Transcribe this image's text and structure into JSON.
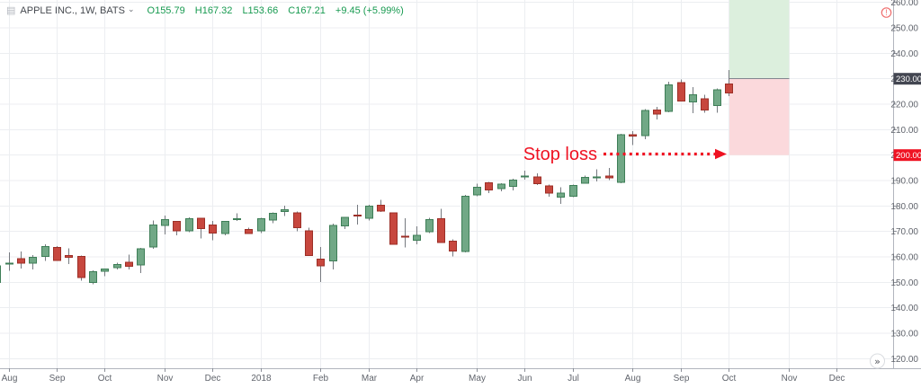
{
  "header": {
    "symbol": "APPLE INC., 1W, BATS",
    "open": "O155.79",
    "high": "H167.32",
    "low": "L153.66",
    "close": "C167.21",
    "change": "+9.45 (+5.99%)"
  },
  "icons": {
    "symbol_chart_icon": "▤",
    "symbol_dropdown_icon": "⌄",
    "alert_icon": "!",
    "scroll_to_recent_icon": "»"
  },
  "colors": {
    "background": "#ffffff",
    "up_fill": "#71a886",
    "up_border": "#3e7e57",
    "down_fill": "#c7473e",
    "down_border": "#9c2f27",
    "wick": "#75797f",
    "grid": "#eceef1",
    "axis_line": "#b2b5be",
    "tick": "#8b8f98",
    "axis_text": "#60646c",
    "profit_zone": "#dcefdd",
    "loss_zone": "#fbd9dc",
    "zone_border": "#82868f",
    "entry_label_bg": "#434651",
    "stop_label_bg": "#ef1222",
    "label_text": "#ffffff",
    "annotation_red": "#ef1222",
    "legend_green": "#179a50",
    "legend_text": "#45494f",
    "icon_gray": "#b5b8bf",
    "alert_icon_color": "#ef6e6e",
    "scroll_btn_border": "#d9dce0",
    "scroll_btn_text": "#55585e"
  },
  "chart_data": {
    "type": "candlestick",
    "title": "APPLE INC., 1W, BATS",
    "timeframe": "1W",
    "ylim": [
      118,
      262
    ],
    "grid": true,
    "price_axis_ticks": [
      260,
      250,
      240,
      230,
      220,
      210,
      200,
      190,
      180,
      170,
      160,
      150,
      140,
      130,
      120
    ],
    "x_axis_labels": [
      {
        "label": "Aug",
        "week_index": 1
      },
      {
        "label": "Sep",
        "week_index": 5
      },
      {
        "label": "Oct",
        "week_index": 9
      },
      {
        "label": "Nov",
        "week_index": 14
      },
      {
        "label": "Dec",
        "week_index": 18
      },
      {
        "label": "2018",
        "week_index": 22
      },
      {
        "label": "Feb",
        "week_index": 27
      },
      {
        "label": "Mar",
        "week_index": 31
      },
      {
        "label": "Apr",
        "week_index": 35
      },
      {
        "label": "May",
        "week_index": 40
      },
      {
        "label": "Jun",
        "week_index": 44
      },
      {
        "label": "Jul",
        "week_index": 48
      },
      {
        "label": "Aug",
        "week_index": 53
      },
      {
        "label": "Sep",
        "week_index": 57
      },
      {
        "label": "Oct",
        "week_index": 61
      },
      {
        "label": "Nov",
        "week_index": 66
      },
      {
        "label": "Dec",
        "week_index": 70
      }
    ],
    "candles": {
      "columns": [
        "week_start",
        "open",
        "high",
        "low",
        "close"
      ],
      "rows": [
        [
          "2017-07-31",
          150.0,
          159.8,
          148.1,
          156.4
        ],
        [
          "2017-08-07",
          157.1,
          161.8,
          154.6,
          157.5
        ],
        [
          "2017-08-14",
          159.3,
          162.1,
          155.5,
          157.5
        ],
        [
          "2017-08-21",
          157.5,
          160.7,
          155.1,
          159.9
        ],
        [
          "2017-08-28",
          160.1,
          164.9,
          158.5,
          164.1
        ],
        [
          "2017-09-05",
          163.8,
          164.3,
          158.5,
          158.6
        ],
        [
          "2017-09-11",
          160.5,
          163.4,
          157.1,
          159.9
        ],
        [
          "2017-09-18",
          160.1,
          160.5,
          150.6,
          151.9
        ],
        [
          "2017-09-25",
          150.0,
          154.7,
          149.2,
          154.1
        ],
        [
          "2017-10-02",
          154.3,
          155.5,
          152.5,
          155.3
        ],
        [
          "2017-10-09",
          155.8,
          157.8,
          155.0,
          157.0
        ],
        [
          "2017-10-16",
          157.9,
          160.9,
          155.0,
          156.3
        ],
        [
          "2017-10-23",
          156.9,
          163.6,
          153.6,
          163.1
        ],
        [
          "2017-10-30",
          163.9,
          174.3,
          163.1,
          172.5
        ],
        [
          "2017-11-06",
          172.4,
          176.2,
          168.8,
          174.7
        ],
        [
          "2017-11-13",
          173.9,
          174.0,
          168.4,
          170.2
        ],
        [
          "2017-11-20",
          170.3,
          175.5,
          169.7,
          175.0
        ],
        [
          "2017-11-27",
          175.1,
          175.1,
          167.2,
          171.1
        ],
        [
          "2017-12-04",
          172.5,
          174.2,
          166.5,
          169.4
        ],
        [
          "2017-12-11",
          169.2,
          174.0,
          168.5,
          173.9
        ],
        [
          "2017-12-18",
          174.9,
          177.2,
          174.2,
          175.0
        ],
        [
          "2017-12-26",
          170.8,
          171.5,
          169.7,
          169.2
        ],
        [
          "2018-01-02",
          170.2,
          175.4,
          169.3,
          175.0
        ],
        [
          "2018-01-08",
          174.4,
          177.4,
          173.2,
          177.1
        ],
        [
          "2018-01-16",
          177.9,
          180.1,
          176.1,
          178.5
        ],
        [
          "2018-01-22",
          177.3,
          177.8,
          170.1,
          171.5
        ],
        [
          "2018-01-29",
          170.2,
          171.4,
          160.3,
          160.5
        ],
        [
          "2018-02-05",
          159.1,
          163.9,
          150.2,
          156.4
        ],
        [
          "2018-02-12",
          158.5,
          173.1,
          155.0,
          172.4
        ],
        [
          "2018-02-20",
          172.1,
          175.7,
          171.0,
          175.5
        ],
        [
          "2018-02-26",
          176.4,
          180.5,
          172.7,
          176.2
        ],
        [
          "2018-03-05",
          175.2,
          180.4,
          174.3,
          180.0
        ],
        [
          "2018-03-12",
          180.3,
          182.4,
          177.6,
          178.0
        ],
        [
          "2018-03-19",
          177.3,
          177.5,
          164.9,
          164.9
        ],
        [
          "2018-03-26",
          168.1,
          175.2,
          163.8,
          167.8
        ],
        [
          "2018-04-02",
          166.6,
          172.0,
          164.9,
          168.4
        ],
        [
          "2018-04-09",
          169.9,
          175.4,
          169.4,
          174.7
        ],
        [
          "2018-04-16",
          175.0,
          178.9,
          165.4,
          165.7
        ],
        [
          "2018-04-23",
          166.2,
          166.9,
          160.2,
          162.3
        ],
        [
          "2018-04-30",
          162.1,
          184.3,
          161.8,
          183.8
        ],
        [
          "2018-05-07",
          184.4,
          188.7,
          183.9,
          187.4
        ],
        [
          "2018-05-14",
          189.1,
          189.5,
          185.1,
          186.3
        ],
        [
          "2018-05-21",
          186.9,
          189.0,
          185.8,
          188.6
        ],
        [
          "2018-05-29",
          187.7,
          190.8,
          186.2,
          190.2
        ],
        [
          "2018-06-04",
          191.6,
          193.9,
          190.4,
          191.7
        ],
        [
          "2018-06-11",
          191.4,
          192.9,
          188.2,
          188.8
        ],
        [
          "2018-06-18",
          187.9,
          188.4,
          183.6,
          185.0
        ],
        [
          "2018-06-25",
          183.4,
          187.3,
          180.8,
          185.1
        ],
        [
          "2018-07-02",
          183.8,
          188.4,
          183.4,
          188.0
        ],
        [
          "2018-07-09",
          189.0,
          192.0,
          188.7,
          191.3
        ],
        [
          "2018-07-16",
          191.0,
          194.4,
          189.6,
          191.4
        ],
        [
          "2018-07-23",
          191.8,
          195.0,
          190.1,
          191.0
        ],
        [
          "2018-07-30",
          189.3,
          208.4,
          189.0,
          208.0
        ],
        [
          "2018-08-06",
          208.0,
          209.5,
          204.0,
          207.5
        ],
        [
          "2018-08-13",
          207.7,
          218.0,
          206.3,
          217.6
        ],
        [
          "2018-08-20",
          217.8,
          218.9,
          214.0,
          216.2
        ],
        [
          "2018-08-27",
          217.1,
          228.9,
          216.8,
          227.6
        ],
        [
          "2018-09-04",
          228.4,
          229.7,
          221.1,
          221.3
        ],
        [
          "2018-09-10",
          220.9,
          226.8,
          216.5,
          223.8
        ],
        [
          "2018-09-17",
          222.1,
          223.8,
          216.6,
          217.7
        ],
        [
          "2018-09-24",
          219.5,
          226.2,
          216.6,
          225.7
        ],
        [
          "2018-10-01",
          227.9,
          233.5,
          223.2,
          224.5
        ]
      ]
    },
    "position_tool": {
      "direction": "long",
      "entry_price": 230.0,
      "stop_price": 200.0,
      "entry_label": "230.00",
      "stop_label": "200.00"
    },
    "annotation": {
      "text": "Stop loss"
    }
  }
}
